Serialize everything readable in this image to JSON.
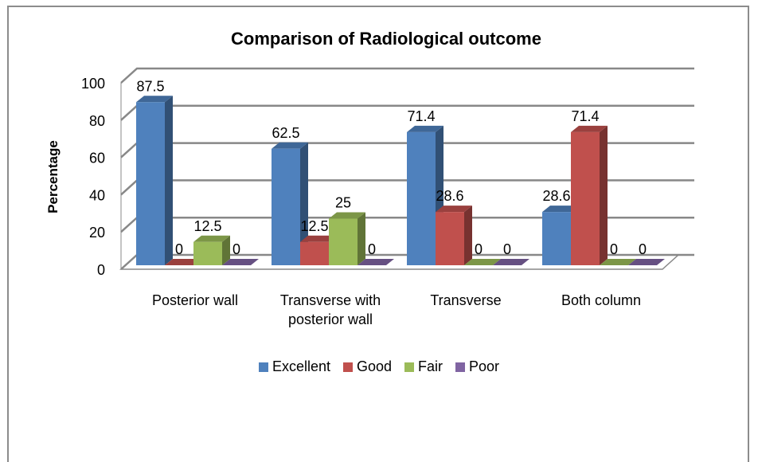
{
  "chart_data": {
    "type": "bar3d",
    "title": "Comparison of Radiological outcome",
    "ylabel": "Percentage",
    "categories": [
      "Posterior wall",
      "Transverse with posterior wall",
      "Transverse",
      "Both column"
    ],
    "series": [
      {
        "name": "Excellent",
        "color": "#4f81bd",
        "values": [
          87.5,
          62.5,
          71.4,
          28.6
        ]
      },
      {
        "name": "Good",
        "color": "#c0504d",
        "values": [
          0,
          12.5,
          28.6,
          71.4
        ]
      },
      {
        "name": "Fair",
        "color": "#9bbb59",
        "values": [
          12.5,
          25,
          0,
          0
        ]
      },
      {
        "name": "Poor",
        "color": "#8064a2",
        "values": [
          0,
          0,
          0,
          0
        ]
      }
    ],
    "ylim": [
      0,
      100
    ],
    "yticks": [
      0,
      20,
      40,
      60,
      80,
      100
    ],
    "grid": true,
    "legend": "bottom"
  }
}
